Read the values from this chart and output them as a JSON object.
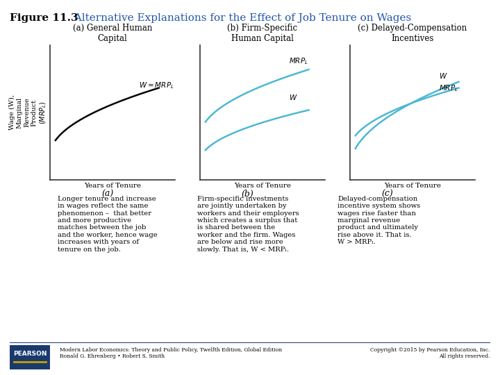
{
  "title_bold": "Figure 11.3",
  "title_blue": "  Alternative Explanations for the Effect of Job Tenure on Wages",
  "subplot_titles": [
    "(a) General Human\nCapital",
    "(b) Firm-Specific\nHuman Capital",
    "(c) Delayed-Compensation\nIncentives"
  ],
  "xlabel": "Years of Tenure",
  "ylabel_a": "Wage (W),\nMarginal\nRevenue\nProduct\n(MRPₗ)",
  "panel_labels": [
    "(a)",
    "(b)",
    "(c)"
  ],
  "caption_a": "(a)\nLonger tenure and increase\nin wages reflect the same\nphenomenon –  that better\nand more productive\nmatches between the job\nand the worker, hence wage\nincreases with years of\ntenure on the job.",
  "caption_b": "(b)\nFirm-specific investments\nare jointly undertaken by\nworkers and their employers\nwhich creates a surplus that\nis shared between the\nworker and the firm. Wages\nare below and rise more\nslowly. That is, W < MRPₗ.",
  "caption_c": "(c)\nDelayed-compensation\nincentive system shows\nwages rise faster than\nmarginal revenue\nproduct and ultimately\nrise above it. That is.\nW > MRPₗ.",
  "footer_left": "Modern Labor Economics: Theory and Public Policy, Twelfth Edition, Global Edition\nRonald G. Ehrenberg • Robert S. Smith",
  "footer_right": "Copyright ©2015 by Pearson Education, Inc.\nAll rights reserved.",
  "bg_color": "#ffffff",
  "curve_color_a": "#000000",
  "curve_color_b_mrpl": "#4db8d4",
  "curve_color_b_w": "#4db8d4",
  "curve_color_c_w": "#4db8d4",
  "curve_color_c_mrpl": "#4db8d4",
  "axis_color": "#000000",
  "pearson_bar_color": "#1a3a6e",
  "pearson_accent": "#c8a000"
}
